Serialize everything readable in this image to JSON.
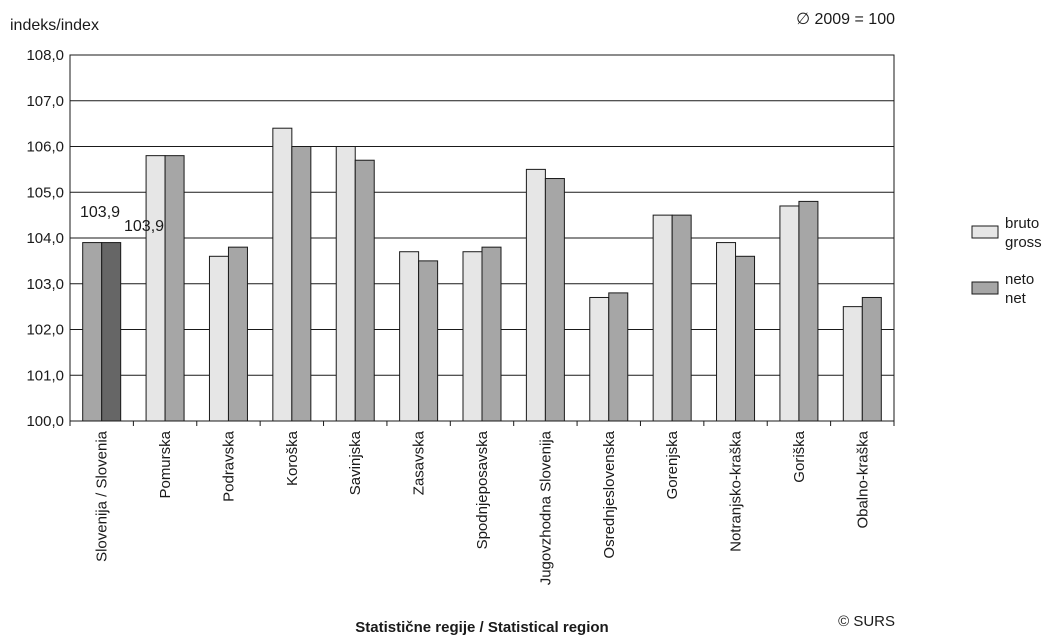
{
  "chart_data": {
    "type": "bar",
    "ylabel": "indeks/index",
    "base_note": "∅ 2009 = 100",
    "xlabel": "Statistične regije / Statistical region",
    "source": "© SURS",
    "ylim": [
      100.0,
      108.0
    ],
    "yticks": [
      "100,0",
      "101,0",
      "102,0",
      "103,0",
      "104,0",
      "105,0",
      "106,0",
      "107,0",
      "108,0"
    ],
    "grid": true,
    "legend_position": "right",
    "categories": [
      "Slovenija / Slovenia",
      "Pomurska",
      "Podravska",
      "Koroška",
      "Savinjska",
      "Zasavska",
      "Spodnjeposavska",
      "Jugovzhodna Slovenija",
      "Osrednjeslovenska",
      "Gorenjska",
      "Notranjsko-kraška",
      "Goriška",
      "Obalno-kraška"
    ],
    "series": [
      {
        "name": "bruto",
        "name_en": "gross",
        "color": "#e6e6e6",
        "highlight_color": "#a6a6a6",
        "values": [
          103.9,
          105.8,
          103.6,
          106.4,
          106.0,
          103.7,
          103.7,
          105.5,
          102.7,
          104.5,
          103.9,
          104.7,
          102.5
        ]
      },
      {
        "name": "neto",
        "name_en": "net",
        "color": "#a6a6a6",
        "highlight_color": "#666666",
        "values": [
          103.9,
          105.8,
          103.8,
          106.0,
          105.7,
          103.5,
          103.8,
          105.3,
          102.8,
          104.5,
          103.6,
          104.8,
          102.7
        ]
      }
    ],
    "data_labels": [
      "103,9",
      "103,9"
    ]
  }
}
